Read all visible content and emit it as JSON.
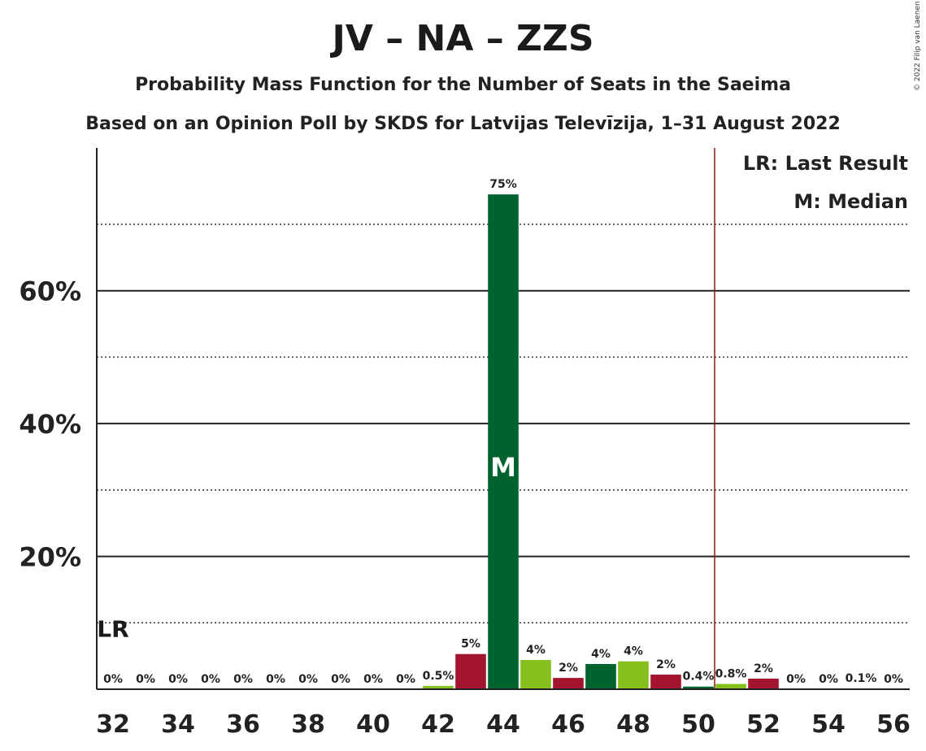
{
  "chart_data": {
    "type": "bar",
    "title": "JV – NA – ZZS",
    "subtitle": "Probability Mass Function for the Number of Seats in the Saeima",
    "subtitle2": "Based on an Opinion Poll by SKDS for Latvijas Televīzija, 1–31 August 2022",
    "copyright": "© 2022 Filip van Laenen",
    "x": [
      32,
      33,
      34,
      35,
      36,
      37,
      38,
      39,
      40,
      41,
      42,
      43,
      44,
      45,
      46,
      47,
      48,
      49,
      50,
      51,
      52,
      53,
      54,
      55,
      56
    ],
    "values": [
      0,
      0,
      0,
      0,
      0,
      0,
      0,
      0,
      0,
      0,
      0.5,
      5.3,
      74.5,
      4.4,
      1.7,
      3.8,
      4.2,
      2.2,
      0.4,
      0.8,
      1.6,
      0,
      0,
      0.1,
      0
    ],
    "labels": [
      "0%",
      "0%",
      "0%",
      "0%",
      "0%",
      "0%",
      "0%",
      "0%",
      "0%",
      "0%",
      "0.5%",
      "5%",
      "75%",
      "4%",
      "2%",
      "4%",
      "4%",
      "2%",
      "0.4%",
      "0.8%",
      "2%",
      "0%",
      "0%",
      "0.1%",
      "0%"
    ],
    "bar_colors": [
      "#a3152e",
      "#a3152e",
      "#a3152e",
      "#a3152e",
      "#a3152e",
      "#a3152e",
      "#a3152e",
      "#a3152e",
      "#a3152e",
      "#a3152e",
      "#86c01e",
      "#a3152e",
      "#00632d",
      "#86c01e",
      "#a3152e",
      "#00632d",
      "#86c01e",
      "#a3152e",
      "#00632d",
      "#86c01e",
      "#a3152e",
      "#a3152e",
      "#a3152e",
      "#a3152e",
      "#a3152e"
    ],
    "x_tick_values": [
      32,
      34,
      36,
      38,
      40,
      42,
      44,
      46,
      48,
      50,
      52,
      54,
      56
    ],
    "x_tick_labels": [
      "32",
      "34",
      "36",
      "38",
      "40",
      "42",
      "44",
      "46",
      "48",
      "50",
      "52",
      "54",
      "56"
    ],
    "y_tick_values": [
      20,
      40,
      60
    ],
    "y_tick_labels": [
      "20%",
      "40%",
      "60%"
    ],
    "y_dotted_values": [
      10,
      30,
      50,
      70
    ],
    "ylim": [
      0,
      81.5
    ],
    "xlim": [
      31.5,
      56.5
    ],
    "last_result_seat": 32,
    "last_result_mark": "LR",
    "median_seat": 44,
    "median_mark": "M",
    "majority_line": 50.5,
    "majority_color": "#8b1a1a",
    "legend": [
      "LR: Last Result",
      "M: Median"
    ],
    "legend_position": "top-right",
    "grid": true
  }
}
